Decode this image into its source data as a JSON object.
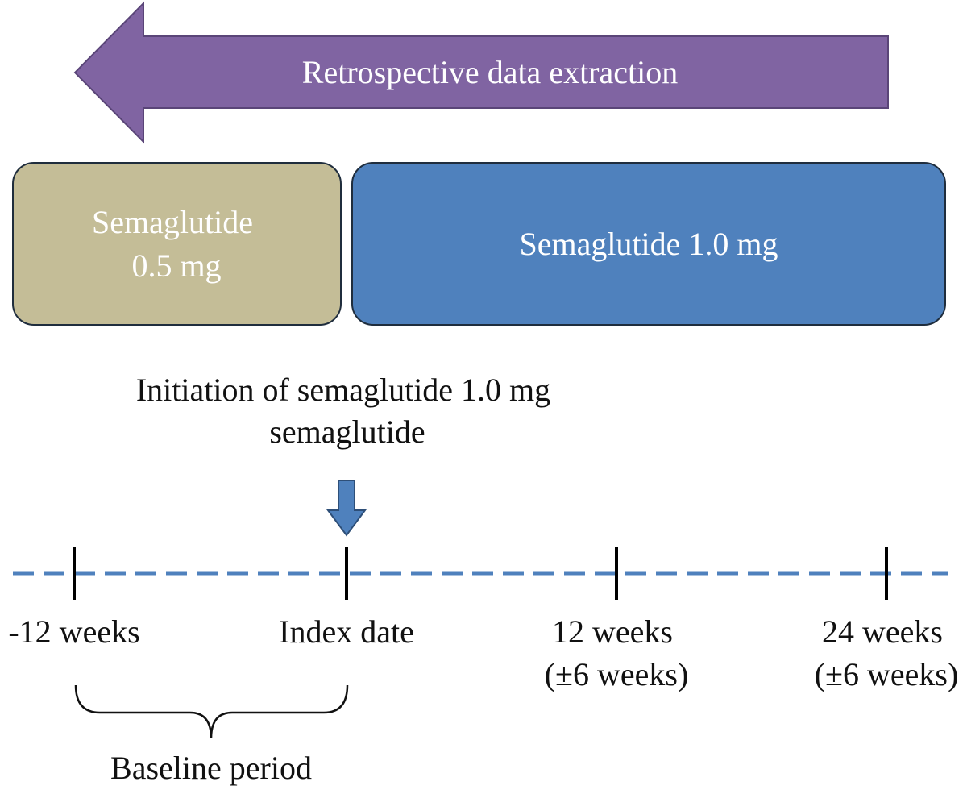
{
  "extraction_arrow": {
    "label": "Retrospective data extraction",
    "color": "#8064A2"
  },
  "phases": [
    {
      "lines": [
        "Semaglutide",
        "0.5 mg"
      ],
      "color": "#C4BD97"
    },
    {
      "lines": [
        "Semaglutide 1.0 mg"
      ],
      "color": "#4F81BD"
    }
  ],
  "initiation": {
    "lines": [
      "Initiation of semaglutide 1.0 mg",
      "semaglutide"
    ]
  },
  "timeline": {
    "color": "#4F81BD",
    "ticks": [
      {
        "lines": [
          "-12 weeks"
        ]
      },
      {
        "lines": [
          "Index date"
        ]
      },
      {
        "lines": [
          "12 weeks",
          "(±6 weeks)"
        ]
      },
      {
        "lines": [
          "24 weeks",
          "(±6 weeks)"
        ]
      }
    ]
  },
  "baseline": {
    "label": "Baseline period"
  }
}
